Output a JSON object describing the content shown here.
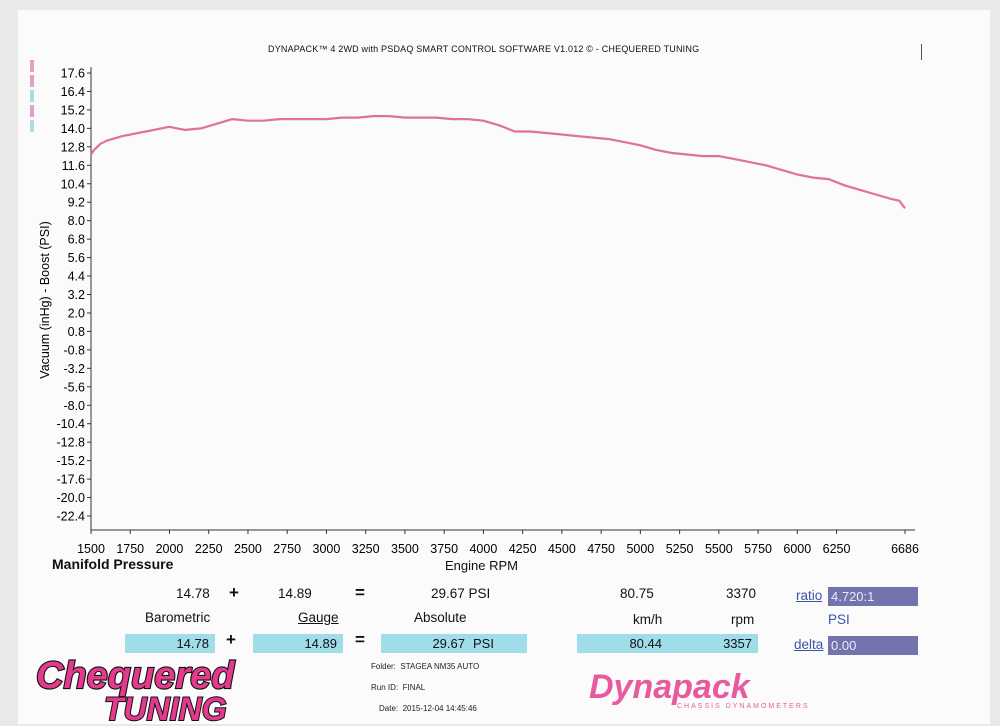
{
  "header": {
    "title": "DYNAPACK™ 4 2WD with PSDAQ SMART CONTROL SOFTWARE V1.012 © - CHEQUERED TUNING"
  },
  "chart_data": {
    "type": "line",
    "title": "Manifold Pressure",
    "xlabel": "Engine RPM",
    "ylabel": "Vacuum (inHg) - Boost (PSI)",
    "xlim": [
      1500,
      6686
    ],
    "ylim": [
      -22.4,
      17.6
    ],
    "x_ticks": [
      1500,
      1750,
      2000,
      2250,
      2500,
      2750,
      3000,
      3250,
      3500,
      3750,
      4000,
      4250,
      4500,
      4750,
      5000,
      5250,
      5500,
      5750,
      6000,
      6250,
      6686
    ],
    "x_tick_labels": [
      "1500",
      "1750",
      "2000",
      "2250",
      "2500",
      "2750",
      "3000",
      "3250",
      "3500",
      "3750",
      "4000",
      "4250",
      "4500",
      "4750",
      "5000",
      "5250",
      "5500",
      "5750",
      "6000",
      "6250",
      "6686"
    ],
    "y_ticks": [
      17.6,
      16.4,
      15.2,
      14.0,
      12.8,
      11.6,
      10.4,
      9.2,
      8.0,
      6.8,
      5.6,
      4.4,
      3.2,
      2.0,
      0.8,
      -0.8,
      -3.2,
      -5.6,
      -8.0,
      -10.4,
      -12.8,
      -15.2,
      -17.6,
      -20.0,
      -22.4
    ],
    "y_tick_labels": [
      "17.6",
      "16.4",
      "15.2",
      "14.0",
      "12.8",
      "11.6",
      "10.4",
      "9.2",
      "8.0",
      "6.8",
      "5.6",
      "4.4",
      "3.2",
      "2.0",
      "0.8",
      "-0.8",
      "-3.2",
      "-5.6",
      "-8.0",
      "-10.4",
      "-12.8",
      "-15.2",
      "-17.6",
      "-20.0",
      "-22.4"
    ],
    "grid": false,
    "series": [
      {
        "color": "#e0709e",
        "x": [
          1500,
          1520,
          1560,
          1600,
          1700,
          1800,
          1900,
          2000,
          2050,
          2100,
          2200,
          2300,
          2400,
          2500,
          2600,
          2700,
          2800,
          2900,
          3000,
          3100,
          3200,
          3300,
          3400,
          3500,
          3600,
          3700,
          3800,
          3900,
          4000,
          4100,
          4200,
          4300,
          4400,
          4500,
          4600,
          4700,
          4800,
          4900,
          5000,
          5100,
          5200,
          5300,
          5400,
          5500,
          5600,
          5700,
          5800,
          5900,
          6000,
          6100,
          6200,
          6300,
          6400,
          6500,
          6600,
          6650,
          6686
        ],
        "values": [
          12.3,
          12.6,
          13.0,
          13.2,
          13.5,
          13.7,
          13.9,
          14.1,
          14.0,
          13.9,
          14.0,
          14.3,
          14.6,
          14.5,
          14.5,
          14.6,
          14.6,
          14.6,
          14.6,
          14.7,
          14.7,
          14.8,
          14.8,
          14.7,
          14.7,
          14.7,
          14.6,
          14.6,
          14.5,
          14.2,
          13.8,
          13.8,
          13.7,
          13.6,
          13.5,
          13.4,
          13.3,
          13.1,
          12.9,
          12.6,
          12.4,
          12.3,
          12.2,
          12.2,
          12.0,
          11.8,
          11.6,
          11.3,
          11.0,
          10.8,
          10.7,
          10.3,
          10.0,
          9.7,
          9.4,
          9.3,
          8.8
        ]
      }
    ]
  },
  "readout": {
    "barometric_value": "14.78",
    "plus1": "+",
    "gauge_value": "14.89",
    "equals1": "=",
    "absolute_value": "29.67 PSI",
    "speed_value": "80.75",
    "rpm_value": "3370",
    "barometric_label": "Barometric",
    "gauge_label": "Gauge",
    "absolute_label": "Absolute",
    "speed_unit": "km/h",
    "rpm_unit": "rpm",
    "ratio_label": "ratio",
    "ratio_value": "4.720:1",
    "psi_label": "PSI",
    "delta_label": "delta",
    "delta_value": "0.00",
    "cursor_barometric": "14.78",
    "plus2": "+",
    "cursor_gauge": "14.89",
    "equals2": "=",
    "cursor_absolute": "29.67",
    "cursor_absolute_unit": "PSI",
    "cursor_speed": "80.44",
    "cursor_rpm": "3357"
  },
  "run_info": {
    "folder_label": "Folder:",
    "folder_value": "STAGEA NM35 AUTO",
    "run_label": "Run ID:",
    "run_value": "FINAL",
    "date_label": "Date:",
    "date_value": "2015-12-04 14:45:46"
  },
  "logos": {
    "chequered_line1": "Chequered",
    "chequered_line2": "TUNING",
    "dynapack": "Dynapack",
    "dynapack_tagline": "CHASSIS DYNAMOMETERS"
  },
  "colors": {
    "curve": "#e0709e",
    "cell": "#9fdde9",
    "dark_cell": "#7473ad",
    "link_blue": "#3b55a5",
    "logo_pink": "#e33a8e"
  }
}
